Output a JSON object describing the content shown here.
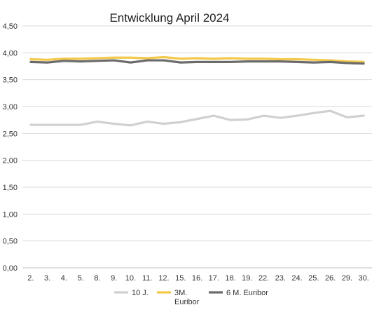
{
  "chart_data": {
    "type": "line",
    "title": "Entwicklung April 2024",
    "xlabel": "",
    "ylabel": "",
    "ylim": [
      0,
      4.5
    ],
    "y_ticks": [
      "0,00",
      "0,50",
      "1,00",
      "1,50",
      "2,00",
      "2,50",
      "3,00",
      "3,50",
      "4,00",
      "4,50"
    ],
    "y_tick_values": [
      0,
      0.5,
      1.0,
      1.5,
      2.0,
      2.5,
      3.0,
      3.5,
      4.0,
      4.5
    ],
    "grid": true,
    "legend_position": "bottom",
    "categories": [
      "2.",
      "3.",
      "4.",
      "5.",
      "8.",
      "9.",
      "10.",
      "11.",
      "12.",
      "15.",
      "16.",
      "17.",
      "18.",
      "19.",
      "22.",
      "23.",
      "24.",
      "25.",
      "26.",
      "29.",
      "30."
    ],
    "series": [
      {
        "name": "10 J.",
        "color": "#d0d0d0",
        "values": [
          2.66,
          2.66,
          2.66,
          2.66,
          2.72,
          2.68,
          2.65,
          2.72,
          2.68,
          2.71,
          2.77,
          2.83,
          2.75,
          2.76,
          2.83,
          2.79,
          2.83,
          2.88,
          2.92,
          2.8,
          2.83
        ]
      },
      {
        "name": "3M. Euribor",
        "legend_lines": [
          "3M.",
          "Euribor"
        ],
        "color": "#f2c94c",
        "values": [
          3.88,
          3.87,
          3.89,
          3.89,
          3.9,
          3.91,
          3.91,
          3.9,
          3.92,
          3.89,
          3.9,
          3.89,
          3.9,
          3.89,
          3.89,
          3.88,
          3.88,
          3.87,
          3.86,
          3.84,
          3.83
        ]
      },
      {
        "name": "6 M. Euribor",
        "color": "#6b6b6b",
        "values": [
          3.83,
          3.82,
          3.85,
          3.84,
          3.85,
          3.86,
          3.82,
          3.86,
          3.86,
          3.82,
          3.83,
          3.83,
          3.83,
          3.84,
          3.84,
          3.84,
          3.83,
          3.82,
          3.83,
          3.81,
          3.8
        ]
      }
    ]
  }
}
